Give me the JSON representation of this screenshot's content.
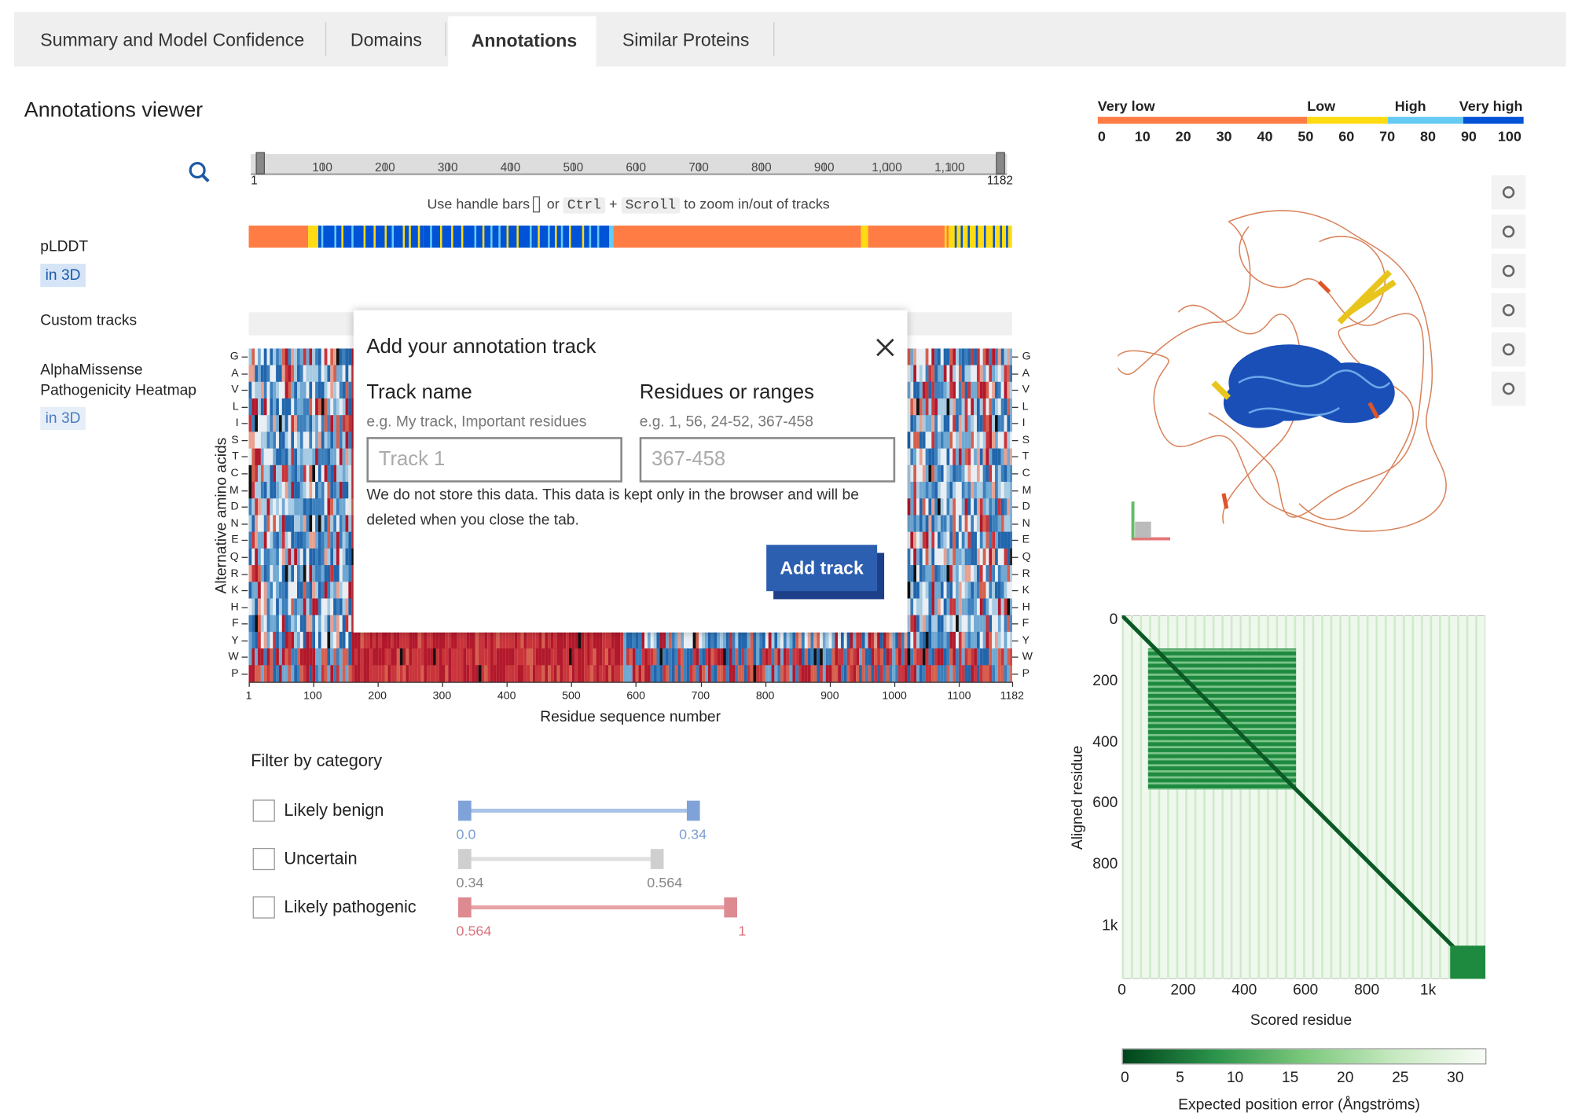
{
  "tabs": [
    "Summary and Model Confidence",
    "Domains",
    "Annotations",
    "Similar Proteins"
  ],
  "viewer_title": "Annotations viewer",
  "navigation": {
    "start": "1",
    "end": "1182",
    "ticks": [
      "100",
      "200",
      "300",
      "400",
      "500",
      "600",
      "700",
      "800",
      "900",
      "1,000",
      "1,100"
    ]
  },
  "hint": {
    "prefix": "Use handle bars",
    "or": "or",
    "key1": "Ctrl",
    "plus": "+",
    "key2": "Scroll",
    "suffix": "to zoom in/out of tracks"
  },
  "tracks": [
    {
      "label": "pLDDT",
      "button": "in 3D"
    },
    {
      "label": "Custom tracks"
    },
    {
      "label": "AlphaMissense Pathogenicity Heatmap",
      "button": "in 3D"
    }
  ],
  "modal": {
    "title": "Add your annotation track",
    "fields": [
      {
        "label": "Track name",
        "hint": "e.g. My track, Important residues",
        "placeholder": "Track 1"
      },
      {
        "label": "Residues or ranges",
        "hint": "e.g. 1, 56, 24-52, 367-458",
        "placeholder": "367-458"
      }
    ],
    "note": "We do not store this data. This data is kept only in the browser and will be deleted when you close the tab.",
    "button": "Add track"
  },
  "heatmap": {
    "y_label": "Alternative amino acids",
    "amino_acids": [
      "G",
      "A",
      "V",
      "L",
      "I",
      "S",
      "T",
      "C",
      "M",
      "D",
      "N",
      "E",
      "Q",
      "R",
      "K",
      "H",
      "F",
      "Y",
      "W",
      "P"
    ],
    "x_ticks": [
      "1",
      "100",
      "200",
      "300",
      "400",
      "500",
      "600",
      "700",
      "800",
      "900",
      "1000",
      "1100",
      "1182"
    ],
    "x_label": "Residue sequence number"
  },
  "filter": {
    "title": "Filter by category",
    "categories": [
      {
        "label": "Likely benign",
        "min": "0.0",
        "max": "0.34"
      },
      {
        "label": "Uncertain",
        "min": "0.34",
        "max": "0.564"
      },
      {
        "label": "Likely pathogenic",
        "min": "0.564",
        "max": "1"
      }
    ]
  },
  "plddt_legend": {
    "labels": [
      "Very low",
      "Low",
      "High",
      "Very high"
    ],
    "ticks": [
      "0",
      "10",
      "20",
      "30",
      "40",
      "50",
      "60",
      "70",
      "80",
      "90",
      "100"
    ]
  },
  "pae": {
    "y_ticks": [
      "0",
      "200",
      "400",
      "600",
      "800",
      "1k"
    ],
    "x_ticks": [
      "0",
      "200",
      "400",
      "600",
      "800",
      "1k"
    ],
    "x_label": "Scored residue",
    "y_label": "Aligned residue",
    "colorbar_ticks": [
      "0",
      "5",
      "10",
      "15",
      "20",
      "25",
      "30"
    ],
    "colorbar_label": "Expected position error (Ångströms)"
  }
}
